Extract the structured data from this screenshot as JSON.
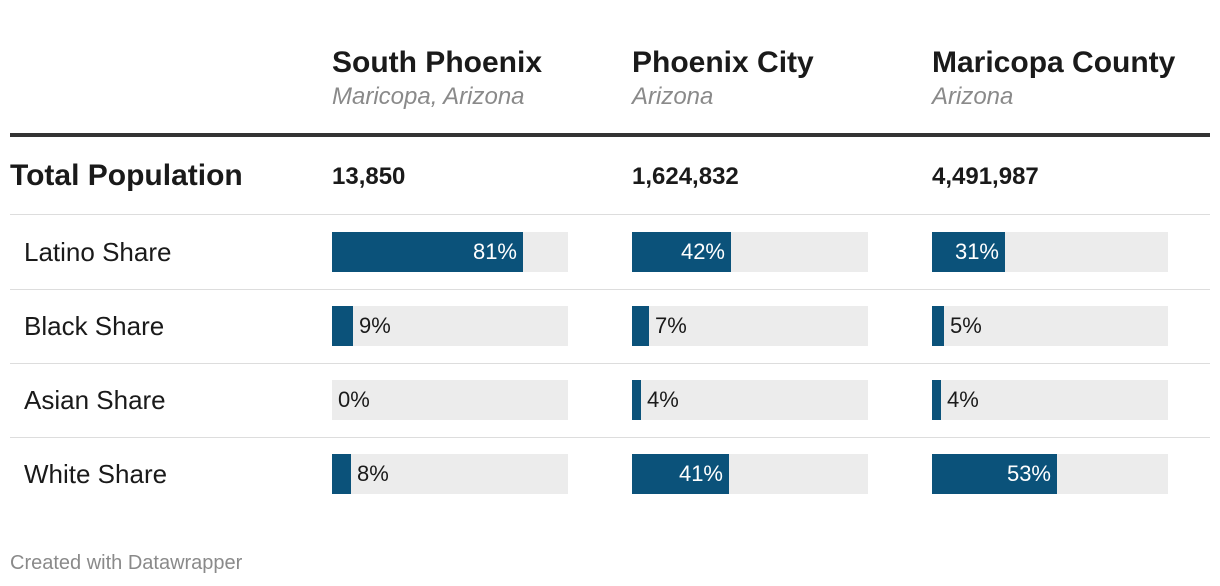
{
  "chart_data": {
    "type": "table",
    "columns": [
      {
        "name": "South Phoenix",
        "subtitle": "Maricopa, Arizona"
      },
      {
        "name": "Phoenix City",
        "subtitle": "Arizona"
      },
      {
        "name": "Maricopa County",
        "subtitle": "Arizona"
      }
    ],
    "total_row": {
      "label": "Total Population",
      "values": [
        "13,850",
        "1,624,832",
        "4,491,987"
      ]
    },
    "rows": [
      {
        "label": "Latino Share",
        "values": [
          81,
          42,
          31
        ]
      },
      {
        "label": "Black Share",
        "values": [
          9,
          7,
          5
        ]
      },
      {
        "label": "Asian Share",
        "values": [
          0,
          4,
          4
        ]
      },
      {
        "label": "White Share",
        "values": [
          8,
          41,
          53
        ]
      }
    ],
    "value_suffix": "%",
    "xlim": [
      0,
      100
    ]
  },
  "colors": {
    "bar": "#0b527a",
    "track": "#ececec"
  },
  "footer": "Created with Datawrapper"
}
